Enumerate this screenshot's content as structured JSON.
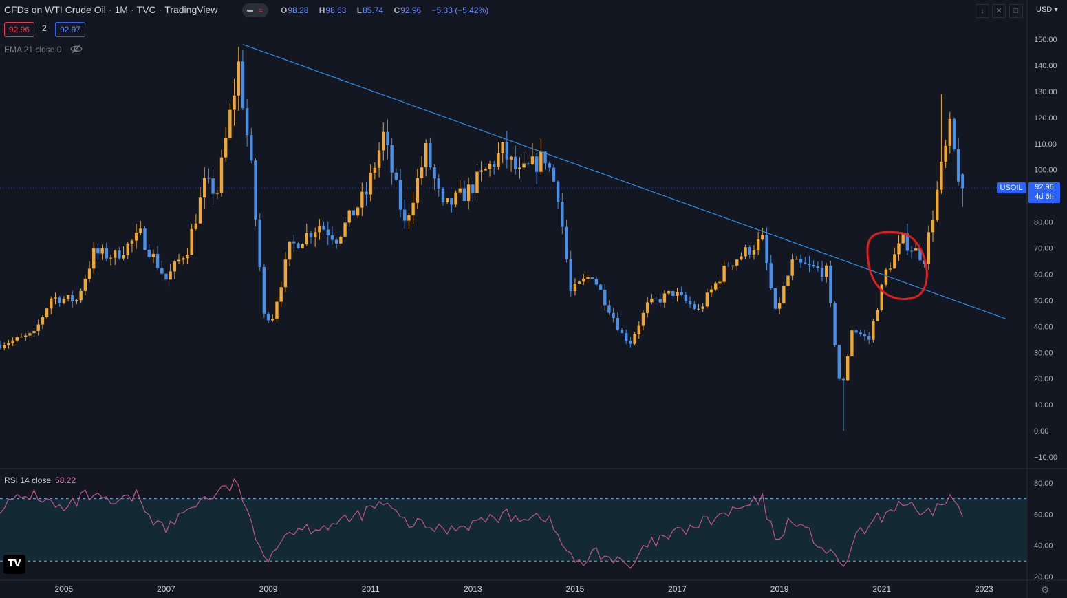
{
  "header": {
    "symbol_name": "CFDs on WTI Crude Oil",
    "interval": "1M",
    "exchange": "TVC",
    "source": "TradingView",
    "ohlc": {
      "open_key": "O",
      "open": "98.28",
      "high_key": "H",
      "high": "98.63",
      "low_key": "L",
      "low": "85.74",
      "close_key": "C",
      "close": "92.96",
      "change": "−5.33 (−5.42%)"
    },
    "sell_price": "92.96",
    "spread": "2",
    "buy_price": "92.97",
    "indicator_ema": "EMA 21 close 0"
  },
  "price_scale": {
    "currency": "USD",
    "symbol_tag": "USOIL",
    "last_price": "92.96",
    "countdown": "4d 6h"
  },
  "rsi_panel": {
    "label": "RSI 14 close",
    "value": "58.22"
  },
  "logo_text": "TV",
  "colors": {
    "background": "#131722",
    "up": "#f0a830",
    "down": "#4a8fe7",
    "trendline": "#2f8de4",
    "annotation": "#e01e1e",
    "rsi_line": "#c2568f",
    "rsi_band": "#132a35"
  },
  "chart_data": [
    {
      "type": "candlestick",
      "title": "",
      "y_ticks": [
        "150.00",
        "140.00",
        "130.00",
        "120.00",
        "110.00",
        "100.00",
        "80.00",
        "70.00",
        "60.00",
        "50.00",
        "40.00",
        "30.00",
        "20.00",
        "10.00",
        "0.00",
        "−10.00"
      ],
      "x_ticks": [
        "2005",
        "2007",
        "2009",
        "2011",
        "2013",
        "2015",
        "2017",
        "2019",
        "2021",
        "2023"
      ],
      "ylim": [
        -10,
        150
      ],
      "xlim": [
        "2003-10",
        "2023-11"
      ],
      "monthly_close_approx": [
        {
          "date": "2003-10",
          "close": 33
        },
        {
          "date": "2004-06",
          "close": 37
        },
        {
          "date": "2004-10",
          "close": 51
        },
        {
          "date": "2005-04",
          "close": 50
        },
        {
          "date": "2005-08",
          "close": 68
        },
        {
          "date": "2006-01",
          "close": 67
        },
        {
          "date": "2006-07",
          "close": 75
        },
        {
          "date": "2007-01",
          "close": 58
        },
        {
          "date": "2007-06",
          "close": 70
        },
        {
          "date": "2007-10",
          "close": 94
        },
        {
          "date": "2008-01",
          "close": 92
        },
        {
          "date": "2008-06",
          "close": 140
        },
        {
          "date": "2008-09",
          "close": 100
        },
        {
          "date": "2008-12",
          "close": 44
        },
        {
          "date": "2009-02",
          "close": 44
        },
        {
          "date": "2009-06",
          "close": 70
        },
        {
          "date": "2010-01",
          "close": 79
        },
        {
          "date": "2010-05",
          "close": 74
        },
        {
          "date": "2010-12",
          "close": 91
        },
        {
          "date": "2011-04",
          "close": 113
        },
        {
          "date": "2011-09",
          "close": 79
        },
        {
          "date": "2012-02",
          "close": 107
        },
        {
          "date": "2012-06",
          "close": 85
        },
        {
          "date": "2012-12",
          "close": 92
        },
        {
          "date": "2013-08",
          "close": 107
        },
        {
          "date": "2013-12",
          "close": 98
        },
        {
          "date": "2014-06",
          "close": 105
        },
        {
          "date": "2014-09",
          "close": 91
        },
        {
          "date": "2014-12",
          "close": 53
        },
        {
          "date": "2015-05",
          "close": 60
        },
        {
          "date": "2015-12",
          "close": 37
        },
        {
          "date": "2016-02",
          "close": 34
        },
        {
          "date": "2016-06",
          "close": 48
        },
        {
          "date": "2016-12",
          "close": 53
        },
        {
          "date": "2017-06",
          "close": 46
        },
        {
          "date": "2018-01",
          "close": 64
        },
        {
          "date": "2018-09",
          "close": 73
        },
        {
          "date": "2018-12",
          "close": 45
        },
        {
          "date": "2019-04",
          "close": 64
        },
        {
          "date": "2019-12",
          "close": 61
        },
        {
          "date": "2020-03",
          "close": 20
        },
        {
          "date": "2020-04",
          "close": 19
        },
        {
          "date": "2020-06",
          "close": 39
        },
        {
          "date": "2020-10",
          "close": 35
        },
        {
          "date": "2021-02",
          "close": 61
        },
        {
          "date": "2021-06",
          "close": 73
        },
        {
          "date": "2021-11",
          "close": 66
        },
        {
          "date": "2022-03",
          "close": 100
        },
        {
          "date": "2022-05",
          "close": 115
        },
        {
          "date": "2022-07",
          "close": 98
        },
        {
          "date": "2022-08",
          "close": 92.96
        }
      ],
      "extremes": {
        "high_2008": 147,
        "low_2020": 0,
        "high_2022": 129
      },
      "trendline": {
        "from": {
          "date": "2008-07",
          "value": 148
        },
        "to": {
          "date": "2023-06",
          "value": 43
        }
      },
      "annotation": "hand-drawn red circle around 2021 breakout"
    },
    {
      "type": "line",
      "title": "",
      "y_ticks": [
        "80.00",
        "60.00",
        "40.00",
        "20.00"
      ],
      "ylim": [
        20,
        80
      ],
      "band": [
        30,
        70
      ],
      "rsi_approx": [
        {
          "date": "2003-10",
          "rsi": 65
        },
        {
          "date": "2004-06",
          "rsi": 73
        },
        {
          "date": "2005-01",
          "rsi": 62
        },
        {
          "date": "2005-06",
          "rsi": 72
        },
        {
          "date": "2006-01",
          "rsi": 66
        },
        {
          "date": "2006-06",
          "rsi": 72
        },
        {
          "date": "2006-10",
          "rsi": 57
        },
        {
          "date": "2007-01",
          "rsi": 50
        },
        {
          "date": "2007-07",
          "rsi": 66
        },
        {
          "date": "2008-06",
          "rsi": 80
        },
        {
          "date": "2008-10",
          "rsi": 42
        },
        {
          "date": "2009-01",
          "rsi": 34
        },
        {
          "date": "2009-06",
          "rsi": 50
        },
        {
          "date": "2010-06",
          "rsi": 54
        },
        {
          "date": "2011-04",
          "rsi": 67
        },
        {
          "date": "2011-09",
          "rsi": 55
        },
        {
          "date": "2012-06",
          "rsi": 50
        },
        {
          "date": "2013-08",
          "rsi": 59
        },
        {
          "date": "2014-06",
          "rsi": 59
        },
        {
          "date": "2014-12",
          "rsi": 33
        },
        {
          "date": "2015-03",
          "rsi": 25
        },
        {
          "date": "2015-05",
          "rsi": 38
        },
        {
          "date": "2016-02",
          "rsi": 25
        },
        {
          "date": "2016-06",
          "rsi": 40
        },
        {
          "date": "2017-03",
          "rsi": 50
        },
        {
          "date": "2018-09",
          "rsi": 69
        },
        {
          "date": "2018-12",
          "rsi": 43
        },
        {
          "date": "2019-04",
          "rsi": 58
        },
        {
          "date": "2020-03",
          "rsi": 28
        },
        {
          "date": "2020-04",
          "rsi": 27
        },
        {
          "date": "2020-07",
          "rsi": 45
        },
        {
          "date": "2021-03",
          "rsi": 63
        },
        {
          "date": "2021-06",
          "rsi": 68
        },
        {
          "date": "2021-11",
          "rsi": 57
        },
        {
          "date": "2022-05",
          "rsi": 72
        },
        {
          "date": "2022-08",
          "rsi": 58.22
        }
      ]
    }
  ]
}
